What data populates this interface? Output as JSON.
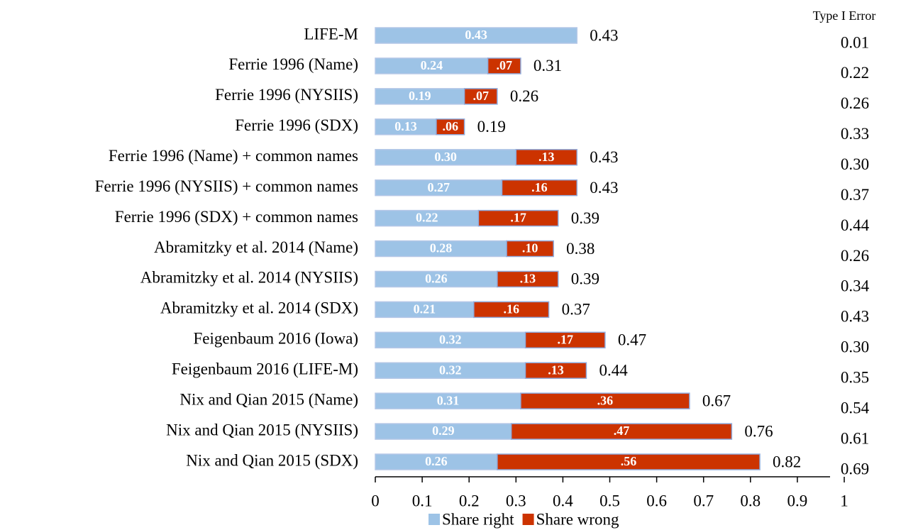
{
  "chart_data": {
    "type": "stacked-barh",
    "categories": [
      "LIFE-M",
      "Ferrie 1996 (Name)",
      "Ferrie 1996 (NYSIIS)",
      "Ferrie 1996 (SDX)",
      "Ferrie 1996 (Name) + common names",
      "Ferrie 1996 (NYSIIS) + common names",
      "Ferrie 1996 (SDX) + common names",
      "Abramitzky et al. 2014 (Name)",
      "Abramitzky et al. 2014 (NYSIIS)",
      "Abramitzky et al. 2014 (SDX)",
      "Feigenbaum 2016 (Iowa)",
      "Feigenbaum 2016 (LIFE-M)",
      "Nix and Qian  2015 (Name)",
      "Nix and Qian  2015 (NYSIIS)",
      "Nix and Qian  2015 (SDX)"
    ],
    "series": [
      {
        "name": "Share right",
        "color": "#9dc3e6",
        "values": [
          0.43,
          0.24,
          0.19,
          0.13,
          0.3,
          0.27,
          0.22,
          0.28,
          0.26,
          0.21,
          0.32,
          0.32,
          0.31,
          0.29,
          0.26
        ],
        "value_labels": [
          "0.43",
          "0.24",
          "0.19",
          "0.13",
          "0.30",
          "0.27",
          "0.22",
          "0.28",
          "0.26",
          "0.21",
          "0.32",
          "0.32",
          "0.31",
          "0.29",
          "0.26"
        ]
      },
      {
        "name": "Share wrong",
        "color": "#cc3300",
        "values": [
          0,
          0.07,
          0.07,
          0.06,
          0.13,
          0.16,
          0.17,
          0.1,
          0.13,
          0.16,
          0.17,
          0.13,
          0.36,
          0.47,
          0.56
        ],
        "value_labels": [
          null,
          ".07",
          ".07",
          ".06",
          ".13",
          ".16",
          ".17",
          ".10",
          ".13",
          ".16",
          ".17",
          ".13",
          ".36",
          ".47",
          ".56"
        ]
      }
    ],
    "totals": {
      "values": [
        0.43,
        0.31,
        0.26,
        0.19,
        0.43,
        0.43,
        0.39,
        0.38,
        0.39,
        0.37,
        0.47,
        0.44,
        0.67,
        0.76,
        0.82
      ],
      "value_labels": [
        "0.43",
        "0.31",
        "0.26",
        "0.19",
        "0.43",
        "0.43",
        "0.39",
        "0.38",
        "0.39",
        "0.37",
        "0.47",
        "0.44",
        "0.67",
        "0.76",
        "0.82"
      ]
    },
    "type_i_error": {
      "title": "Type I Error",
      "values": [
        0.01,
        0.22,
        0.26,
        0.33,
        0.3,
        0.37,
        0.44,
        0.26,
        0.34,
        0.43,
        0.3,
        0.35,
        0.54,
        0.61,
        0.69
      ],
      "value_labels": [
        "0.01",
        "0.22",
        "0.26",
        "0.33",
        "0.30",
        "0.37",
        "0.44",
        "0.26",
        "0.34",
        "0.43",
        "0.30",
        "0.35",
        "0.54",
        "0.61",
        "0.69"
      ]
    },
    "xlim": [
      0,
      1
    ],
    "xticks": [
      0,
      0.1,
      0.2,
      0.3,
      0.4,
      0.5,
      0.6,
      0.7,
      0.8,
      0.9,
      1
    ],
    "legend": "bottom"
  }
}
